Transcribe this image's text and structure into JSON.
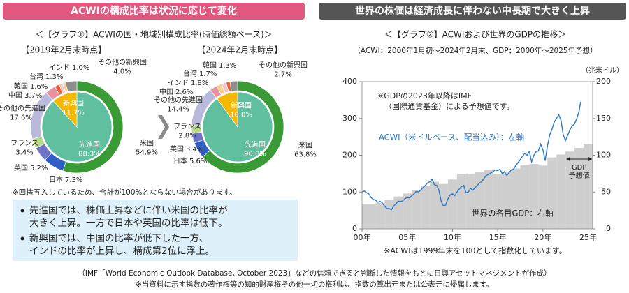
{
  "left_header": "ACWIの構成比率は状況に応じて変化",
  "right_header": "世界の株価は経済成長に伴わない中長期で大きく上昇",
  "left_title": "＜【グラフ①】ACWIの国・地域別構成比率(時価総額ベース)＞",
  "rounding_note": "※四捨五入しているため、合計が100%とならない場合があります。",
  "bullets": [
    [
      "先進国では、株価上昇などに伴い米国の比率が",
      "大きく上昇。一方で日本や英国の比率は低下。"
    ],
    [
      "新興国では、中国の比率が低下した一方、",
      "インドの比率が上昇し、構成第2位に浮上。"
    ]
  ],
  "footer": [
    "（IMF「World Economic Outlook Database, October 2023」などの信頼できると判断した情報をもとに日興アセットマネジメントが作成）",
    "※当資料に示す指数の著作権等の知的財産権その他一切の権利は、指数の算出元または公表元に帰属します。"
  ],
  "chart_data": [
    {
      "type": "donut",
      "subtitle": "【2019年2月末時点】",
      "outer": {
        "categories": [
          "米国",
          "日本",
          "英国",
          "フランス",
          "その他の先進国",
          "中国",
          "韓国",
          "台湾",
          "インド",
          "その他の新興国"
        ],
        "values": [
          54.9,
          7.3,
          5.2,
          3.4,
          17.6,
          3.7,
          1.6,
          1.3,
          1.0,
          4.0
        ],
        "value_labels": [
          "54.9%",
          "7.3%",
          "5.2%",
          "3.4%",
          "17.6%",
          "3.7%",
          "1.6%",
          "1.3%",
          "1.0%",
          "4.0%"
        ],
        "colors": [
          "#3a9a36",
          "#2e5fc4",
          "#6f74c9",
          "#b9d98a",
          "#b9b9dc",
          "#e8919f",
          "#e8623c",
          "#f6c5cf",
          "#f5d08a",
          "#8c8c8c"
        ]
      },
      "inner": {
        "categories": [
          "先進国",
          "新興国"
        ],
        "values": [
          88.3,
          11.7
        ],
        "value_labels": [
          "88.3%",
          "11.7%"
        ],
        "colors": [
          "#5fbf9f",
          "#f5b800"
        ]
      }
    },
    {
      "type": "donut",
      "subtitle": "【2024年2月末時点】",
      "outer": {
        "categories": [
          "米国",
          "日本",
          "英国",
          "フランス",
          "その他の先進国",
          "中国",
          "インド",
          "台湾",
          "韓国",
          "その他の新興国"
        ],
        "values": [
          63.8,
          5.6,
          3.4,
          2.8,
          14.4,
          2.6,
          1.8,
          1.7,
          1.3,
          2.7
        ],
        "value_labels": [
          "63.8%",
          "5.6%",
          "3.4%",
          "2.8%",
          "14.4%",
          "2.6%",
          "1.8%",
          "1.7%",
          "1.3%",
          "2.7%"
        ],
        "colors": [
          "#3a9a36",
          "#2e5fc4",
          "#6f74c9",
          "#b9d98a",
          "#b9b9dc",
          "#e8919f",
          "#f5d08a",
          "#f6c5cf",
          "#e8623c",
          "#8c8c8c"
        ]
      },
      "inner": {
        "categories": [
          "先進国",
          "新興国"
        ],
        "values": [
          90.0,
          10.0
        ],
        "value_labels": [
          "90.0%",
          "10.0%"
        ],
        "colors": [
          "#5fbf9f",
          "#f5b800"
        ]
      }
    },
    {
      "type": "line",
      "title": "＜【グラフ②】ACWIおよび世界のGDPの推移＞",
      "subtitle": "（ACWI：2000年1月初～2024年2月末、GDP：2000年～2025年予想）",
      "y2_label": "（兆米ドル）",
      "notes": [
        "※GDPの2023年以降はIMF",
        "（国際通貨基金）による予想値です。"
      ],
      "forecast_label": [
        "GDP",
        "予想値"
      ],
      "footnote": "※ACWIは1999年末を100として指数化しています。",
      "xlim": [
        2000,
        2025.5
      ],
      "xticks": [
        {
          "value": 2000,
          "label": "00年"
        },
        {
          "value": 2005,
          "label": "05年"
        },
        {
          "value": 2010,
          "label": "10年"
        },
        {
          "value": 2015,
          "label": "15年"
        },
        {
          "value": 2020,
          "label": "20年"
        },
        {
          "value": 2025,
          "label": "25年"
        }
      ],
      "ylim": [
        0,
        400
      ],
      "yticks": [
        0,
        100,
        200,
        300,
        400
      ],
      "y2lim": [
        0,
        200
      ],
      "y2ticks": [
        0,
        50,
        100,
        150,
        200
      ],
      "series": [
        {
          "name": "世界の名目GDP：右軸",
          "color": "#cfcfcf",
          "axis": "y2",
          "x": [
            2000,
            2001,
            2002,
            2003,
            2004,
            2005,
            2006,
            2007,
            2008,
            2009,
            2010,
            2011,
            2012,
            2013,
            2014,
            2015,
            2016,
            2017,
            2018,
            2019,
            2020,
            2021,
            2022,
            2023,
            2024,
            2025
          ],
          "values": [
            34,
            34,
            35,
            39,
            44,
            48,
            52,
            58,
            64,
            61,
            67,
            74,
            75,
            77,
            80,
            75,
            77,
            82,
            87,
            88,
            86,
            97,
            101,
            105,
            110,
            115
          ]
        },
        {
          "name": "ACWI（米ドルベース、配当込み）：左軸",
          "color": "#2a78c8",
          "x": [
            2000,
            2000.25,
            2000.5,
            2000.75,
            2001,
            2001.25,
            2001.5,
            2001.75,
            2002,
            2002.25,
            2002.5,
            2002.75,
            2003,
            2003.25,
            2003.5,
            2003.75,
            2004,
            2004.25,
            2004.5,
            2004.75,
            2005,
            2005.25,
            2005.5,
            2005.75,
            2006,
            2006.25,
            2006.5,
            2006.75,
            2007,
            2007.25,
            2007.5,
            2007.75,
            2008,
            2008.25,
            2008.5,
            2008.75,
            2009,
            2009.25,
            2009.5,
            2009.75,
            2010,
            2010.25,
            2010.5,
            2010.75,
            2011,
            2011.25,
            2011.5,
            2011.75,
            2012,
            2012.25,
            2012.5,
            2012.75,
            2013,
            2013.25,
            2013.5,
            2013.75,
            2014,
            2014.25,
            2014.5,
            2014.75,
            2015,
            2015.25,
            2015.5,
            2015.75,
            2016,
            2016.25,
            2016.5,
            2016.75,
            2017,
            2017.25,
            2017.5,
            2017.75,
            2018,
            2018.25,
            2018.5,
            2018.75,
            2019,
            2019.25,
            2019.5,
            2019.75,
            2020,
            2020.25,
            2020.5,
            2020.75,
            2021,
            2021.25,
            2021.5,
            2021.75,
            2022,
            2022.25,
            2022.5,
            2022.75,
            2023,
            2023.25,
            2023.5,
            2023.75,
            2024,
            2024.17
          ],
          "values": [
            100,
            103,
            98,
            95,
            85,
            80,
            78,
            72,
            75,
            70,
            62,
            55,
            55,
            52,
            62,
            68,
            75,
            74,
            76,
            82,
            85,
            84,
            90,
            95,
            102,
            100,
            106,
            112,
            118,
            125,
            128,
            135,
            120,
            118,
            105,
            75,
            62,
            65,
            82,
            92,
            95,
            90,
            100,
            108,
            115,
            118,
            98,
            100,
            110,
            105,
            112,
            118,
            125,
            128,
            138,
            145,
            148,
            152,
            156,
            160,
            158,
            162,
            150,
            155,
            145,
            152,
            160,
            162,
            172,
            180,
            188,
            198,
            205,
            200,
            210,
            182,
            200,
            210,
            212,
            230,
            215,
            185,
            225,
            255,
            270,
            290,
            300,
            310,
            295,
            255,
            240,
            255,
            270,
            280,
            285,
            300,
            320,
            345
          ]
        }
      ]
    }
  ]
}
